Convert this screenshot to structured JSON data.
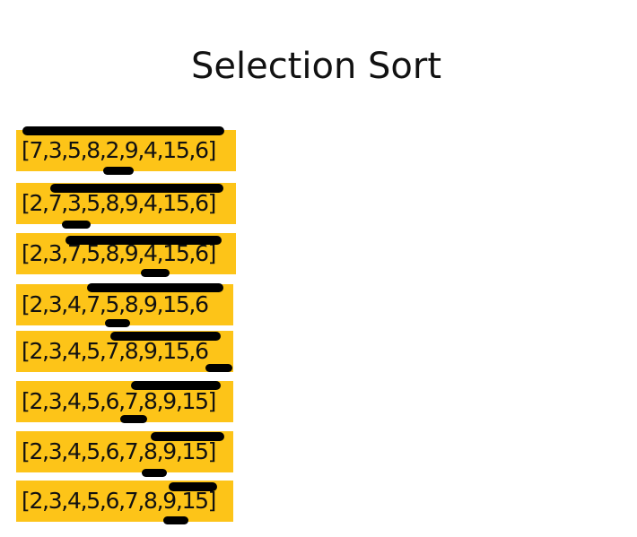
{
  "title": "Selection Sort",
  "colors": {
    "row_background": "#FDC418",
    "marker": "#000000",
    "text": "#111111"
  },
  "steps": [
    {
      "text": "[7,3,5,8,2,9,4,15,6]"
    },
    {
      "text": "[2,7,3,5,8,9,4,15,6]"
    },
    {
      "text": "[2,3,7,5,8,9,4,15,6]"
    },
    {
      "text": "[2,3,4,7,5,8,9,15,6"
    },
    {
      "text": "[2,3,4,5,7,8,9,15,6"
    },
    {
      "text": "[2,3,4,5,6,7,8,9,15]"
    },
    {
      "text": "[2,3,4,5,6,7,8,9,15]"
    },
    {
      "text": "[2,3,4,5,6,7,8,9,15]"
    }
  ]
}
